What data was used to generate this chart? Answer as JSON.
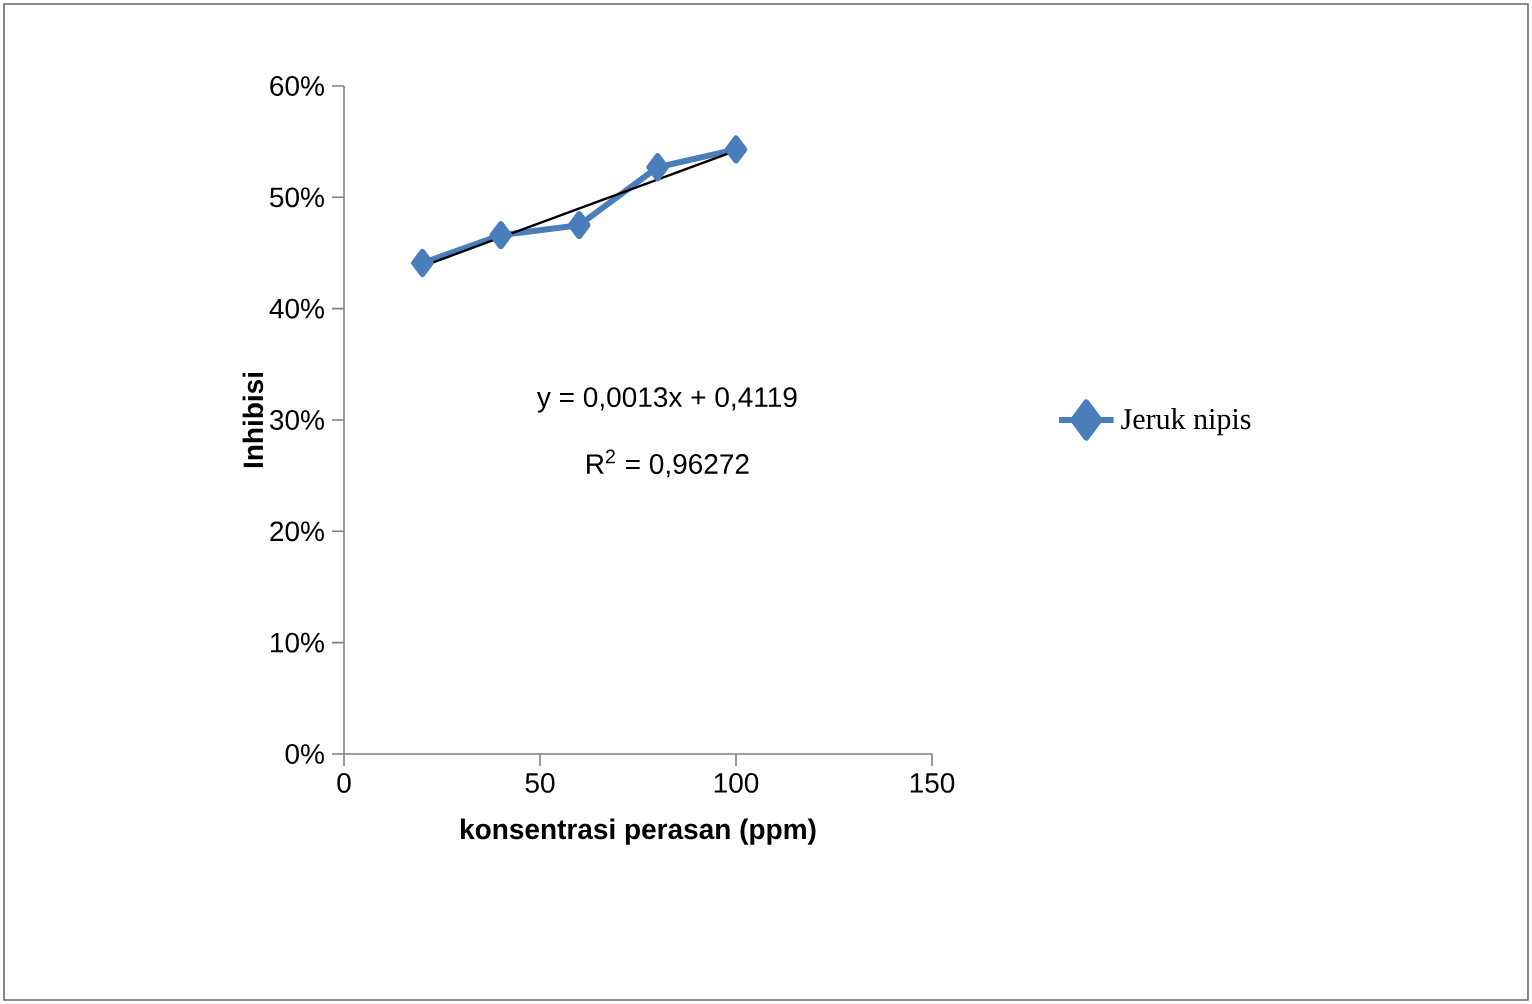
{
  "chart_data": {
    "type": "line",
    "xlabel": "konsentrasi perasan (ppm)",
    "ylabel": "Inhibisi",
    "x": [
      20,
      40,
      60,
      80,
      100
    ],
    "series": [
      {
        "name": "Jeruk nipis",
        "color": "#4a7ebb",
        "values": [
          0.441,
          0.466,
          0.475,
          0.527,
          0.543
        ],
        "marker": "diamond"
      },
      {
        "type": "line",
        "color": "#000000",
        "x": [
          20,
          100
        ],
        "values": [
          0.438,
          0.542
        ],
        "marker": "none"
      }
    ],
    "xlim": [
      0,
      150
    ],
    "xticks": [
      0,
      50,
      100,
      150
    ],
    "ylim": [
      0,
      0.6
    ],
    "yticks": [
      {
        "value": 0,
        "label": "0%"
      },
      {
        "value": 0.1,
        "label": "10%"
      },
      {
        "value": 0.2,
        "label": "20%"
      },
      {
        "value": 0.3,
        "label": "30%"
      },
      {
        "value": 0.4,
        "label": "40%"
      },
      {
        "value": 0.5,
        "label": "50%"
      },
      {
        "value": 0.6,
        "label": "60%"
      }
    ],
    "grid": false,
    "legend": "right",
    "annotations": [
      "y = 0,0013x + 0,4119",
      "R$^{2}$ = 0,96272"
    ]
  }
}
